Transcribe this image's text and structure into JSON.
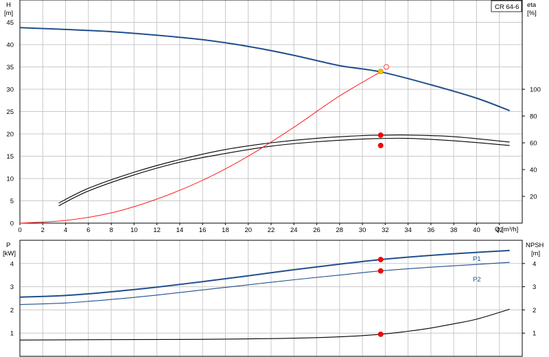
{
  "chart_data": [
    {
      "type": "line",
      "title": "CR 64-6",
      "xlabel": "Q [m³/h]",
      "xlim": [
        0,
        44
      ],
      "x_ticks": [
        "0",
        "2",
        "4",
        "6",
        "8",
        "10",
        "12",
        "14",
        "16",
        "18",
        "20",
        "22",
        "24",
        "26",
        "28",
        "30",
        "32",
        "34",
        "36",
        "38",
        "40",
        "42"
      ],
      "ylabel_left_top": "H",
      "ylabel_left_unit": "[m]",
      "ylim_left": [
        0,
        50
      ],
      "y_ticks_left": [
        "0",
        "5",
        "10",
        "15",
        "20",
        "25",
        "30",
        "35",
        "40",
        "45"
      ],
      "ylabel_right_top": "eta",
      "ylabel_right_unit": "[%]",
      "ylim_right": [
        0,
        166.7
      ],
      "y_ticks_right": [
        "20",
        "40",
        "60",
        "80",
        "100"
      ],
      "grid": true,
      "series": [
        {
          "axis": "left",
          "color": "#1f4e8c",
          "x": [
            0,
            4,
            8,
            12,
            16,
            20,
            24,
            28,
            31.6,
            36,
            40,
            42.9
          ],
          "values": [
            43.8,
            43.4,
            42.9,
            42.1,
            41.1,
            39.6,
            37.6,
            35.3,
            33.9,
            31.0,
            28.0,
            25.2
          ]
        },
        {
          "axis": "right",
          "color": "#000000",
          "x": [
            3.4,
            6,
            10,
            14,
            18,
            22,
            26,
            30,
            31.6,
            34,
            38,
            42.9
          ],
          "values": [
            13.0,
            24.0,
            36.0,
            45.5,
            52.0,
            57.5,
            60.8,
            62.8,
            63.2,
            63.3,
            61.5,
            58.0
          ]
        },
        {
          "axis": "right",
          "color": "#000000",
          "x": [
            3.4,
            6,
            10,
            14,
            18,
            22,
            26,
            30,
            31.6,
            34,
            38,
            42.9
          ],
          "values": [
            15.0,
            26.0,
            38.0,
            47.5,
            55.0,
            60.0,
            63.4,
            65.4,
            65.7,
            65.8,
            64.6,
            60.5
          ]
        },
        {
          "axis": "left",
          "color": "#ff0000",
          "x": [
            0,
            4,
            8,
            12,
            16,
            20,
            24,
            28,
            31.6
          ],
          "values": [
            0,
            0.6,
            2.3,
            5.4,
            9.6,
            15.0,
            21.5,
            28.5,
            33.9
          ]
        }
      ],
      "points": [
        {
          "axis": "left",
          "x": 31.6,
          "y": 34.0,
          "color": "#f2c200"
        },
        {
          "axis": "left",
          "x": 32.1,
          "y": 35.0,
          "color": "#ffffff"
        },
        {
          "axis": "right",
          "x": 31.6,
          "y": 65.7,
          "color": "#ff0000"
        },
        {
          "axis": "right",
          "x": 31.6,
          "y": 58.0,
          "color": "#ff0000"
        }
      ]
    },
    {
      "type": "line",
      "xlim": [
        0,
        44
      ],
      "ylabel_left_top": "P",
      "ylabel_left_unit": "[kW]",
      "ylim_left": [
        0,
        5
      ],
      "y_ticks_left": [
        "1",
        "2",
        "3",
        "4"
      ],
      "ylabel_right_top": "NPSH",
      "ylabel_right_unit": "[m]",
      "ylim_right": [
        0,
        5
      ],
      "y_ticks_right": [
        "1",
        "2",
        "3",
        "4"
      ],
      "grid": true,
      "series": [
        {
          "name": "P1",
          "axis": "left",
          "color": "#1f4e8c",
          "x": [
            0,
            4,
            8,
            12,
            16,
            20,
            24,
            28,
            31.6,
            36,
            40,
            42.9
          ],
          "values": [
            2.55,
            2.62,
            2.78,
            2.98,
            3.22,
            3.47,
            3.73,
            3.97,
            4.17,
            4.35,
            4.48,
            4.56
          ]
        },
        {
          "name": "P2",
          "axis": "left",
          "color": "#1f4e8c",
          "x": [
            0,
            4,
            8,
            12,
            16,
            20,
            24,
            28,
            31.6,
            36,
            40,
            42.9
          ],
          "values": [
            2.23,
            2.3,
            2.45,
            2.64,
            2.86,
            3.08,
            3.3,
            3.5,
            3.68,
            3.84,
            3.96,
            4.05
          ]
        },
        {
          "axis": "right",
          "color": "#000000",
          "x": [
            0,
            8,
            15.5,
            20,
            24,
            28,
            31.6,
            34,
            36,
            38,
            40,
            42.9
          ],
          "values": [
            0.7,
            0.72,
            0.73,
            0.75,
            0.78,
            0.84,
            0.95,
            1.08,
            1.22,
            1.4,
            1.6,
            2.03
          ]
        }
      ],
      "points": [
        {
          "axis": "left",
          "x": 31.6,
          "y": 4.17,
          "color": "#ff0000"
        },
        {
          "axis": "left",
          "x": 31.6,
          "y": 3.68,
          "color": "#ff0000"
        },
        {
          "axis": "right",
          "x": 31.6,
          "y": 0.95,
          "color": "#ff0000"
        }
      ]
    }
  ]
}
